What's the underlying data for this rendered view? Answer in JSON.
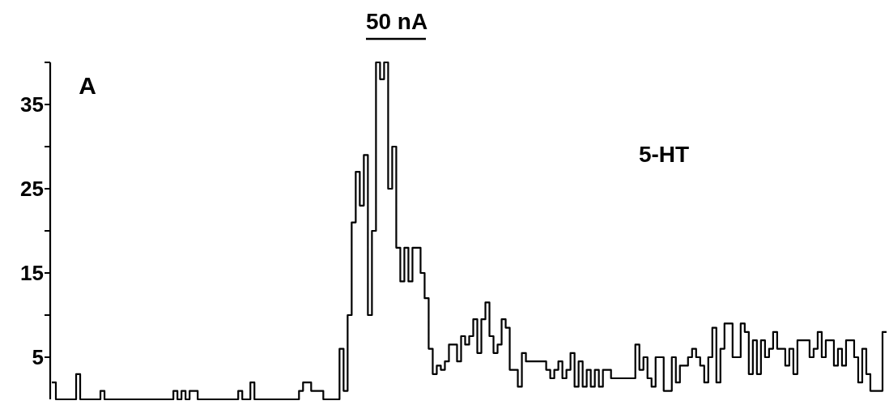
{
  "chart_data": {
    "type": "step",
    "annotations": [
      "50 nA",
      "A",
      "5-HT"
    ],
    "categories": [
      null,
      null,
      null,
      null,
      null,
      null,
      null,
      null,
      null,
      null,
      null,
      null,
      null,
      null,
      null,
      null,
      null,
      null,
      null,
      null,
      null,
      null,
      null,
      null,
      null,
      null,
      null,
      null,
      null,
      null,
      null,
      null,
      null,
      null,
      null,
      null,
      null,
      null,
      null,
      null,
      null,
      null,
      null,
      null,
      null,
      null,
      null,
      null,
      null,
      null,
      null,
      null,
      null,
      null,
      null,
      null,
      null,
      null,
      null,
      null,
      null,
      null,
      null,
      null,
      null,
      null,
      null,
      null,
      null,
      null,
      null,
      null,
      null,
      null,
      null,
      null,
      null,
      null,
      null,
      null,
      null,
      null,
      null,
      null,
      null,
      null,
      null,
      null,
      null,
      null,
      null,
      null,
      null,
      null,
      null,
      null,
      null,
      null,
      null,
      null,
      null,
      null,
      null,
      null,
      null,
      null,
      null,
      null,
      null,
      null,
      null,
      null,
      null,
      null,
      null,
      null,
      null,
      null,
      null,
      null,
      null,
      null,
      null,
      null,
      null,
      null,
      null,
      null,
      null,
      null,
      null,
      null,
      null,
      null,
      null,
      null,
      null,
      null,
      null,
      null,
      null,
      null,
      null,
      null,
      null,
      null,
      null,
      null,
      null,
      null,
      null,
      null,
      null,
      null,
      null,
      null,
      null,
      null,
      null,
      null,
      null,
      null,
      null,
      null,
      null,
      null,
      null,
      null,
      null,
      null,
      null,
      null,
      null,
      null,
      null,
      null,
      null,
      null,
      null,
      null,
      null,
      null,
      null,
      null,
      null,
      null,
      null,
      null,
      null,
      null,
      null,
      null,
      null,
      null,
      null,
      null,
      null,
      null,
      null,
      null,
      null,
      null,
      null,
      null,
      null,
      null,
      null
    ],
    "values": [
      2,
      0,
      0,
      0,
      0,
      0,
      3,
      0,
      0,
      0,
      0,
      0,
      1,
      0,
      0,
      0,
      0,
      0,
      0,
      0,
      0,
      0,
      0,
      0,
      0,
      0,
      0,
      0,
      0,
      0,
      1,
      0,
      1,
      0,
      1,
      1,
      0,
      0,
      0,
      0,
      0,
      0,
      0,
      0,
      0,
      0,
      1,
      0,
      0,
      2,
      0,
      0,
      0,
      0,
      0,
      0,
      0,
      0,
      0,
      0,
      0,
      1,
      2,
      2,
      1,
      1,
      1,
      0,
      0,
      0,
      0,
      6,
      1,
      10,
      21,
      27,
      23,
      29,
      10,
      20,
      40,
      38,
      40,
      25,
      30,
      18,
      14,
      18,
      14,
      18,
      18,
      15,
      12,
      6,
      3,
      4,
      3.5,
      4.5,
      6.5,
      6.5,
      4.5,
      7.5,
      6.5,
      7.5,
      9.5,
      5.5,
      9.5,
      11.5,
      7.5,
      5.5,
      6.5,
      9.5,
      8.5,
      3.5,
      3.5,
      1.5,
      5.5,
      4.5,
      4.5,
      4.5,
      4.5,
      4.5,
      3.5,
      2.5,
      3.5,
      4.5,
      2.5,
      3.5,
      5.5,
      1.5,
      4.5,
      1.5,
      3.5,
      1.5,
      3.5,
      1.5,
      3.5,
      3.5,
      2.5,
      2.5,
      2.5,
      2.5,
      2.5,
      2.5,
      6.5,
      3.5,
      5,
      2.5,
      1.5,
      5,
      5,
      1,
      1,
      5,
      2,
      4,
      4,
      5,
      6,
      5,
      4,
      2,
      5,
      8.5,
      2,
      6,
      9,
      9,
      5,
      5,
      9,
      8,
      3,
      7,
      3,
      7,
      5,
      6,
      8,
      6,
      6,
      4,
      6,
      3,
      7,
      7,
      7,
      5,
      6,
      8,
      5,
      7,
      7,
      4,
      6,
      4,
      7,
      7,
      5,
      2,
      6,
      3,
      1,
      1,
      1,
      8,
      8
    ],
    "color": "#000000",
    "ylim": [
      0,
      40
    ],
    "yticks": [
      5,
      {
        "value": 10,
        "label": null
      },
      15,
      {
        "value": 20,
        "label": null
      },
      25,
      {
        "value": 30,
        "label": null
      },
      35,
      {
        "value": 40,
        "label": null
      }
    ],
    "tick_labels": "y",
    "grid": false
  }
}
